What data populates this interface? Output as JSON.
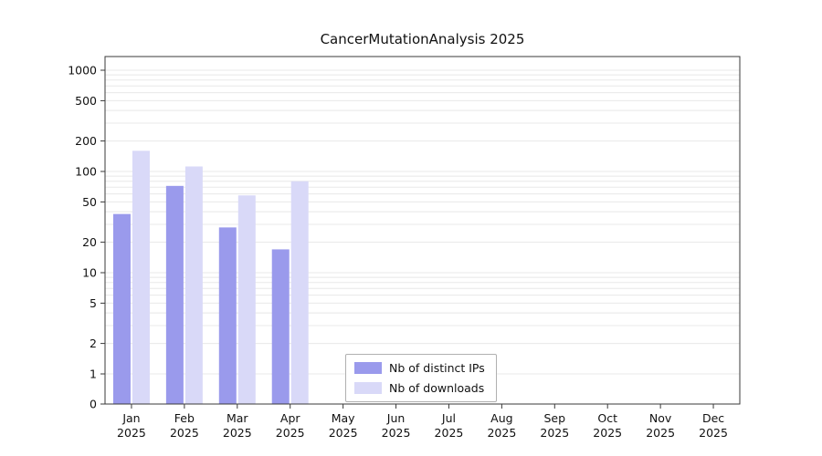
{
  "page": {
    "background": "#ffffff"
  },
  "chart_data": {
    "type": "bar",
    "title": "CancerMutationAnalysis 2025",
    "categories": [
      "Jan 2025",
      "Feb 2025",
      "Mar 2025",
      "Apr 2025",
      "May 2025",
      "Jun 2025",
      "Jul 2025",
      "Aug 2025",
      "Sep 2025",
      "Oct 2025",
      "Nov 2025",
      "Dec 2025"
    ],
    "series": [
      {
        "name": "Nb of distinct IPs",
        "color": "#9a9aec",
        "values": [
          38,
          72,
          28,
          17,
          0,
          0,
          0,
          0,
          0,
          0,
          0,
          0
        ]
      },
      {
        "name": "Nb of downloads",
        "color": "#d9d9f8",
        "values": [
          160,
          112,
          58,
          80,
          0,
          0,
          0,
          0,
          0,
          0,
          0,
          0
        ]
      }
    ],
    "y_ticks": [
      0,
      1,
      2,
      5,
      10,
      20,
      50,
      100,
      200,
      500,
      1000
    ],
    "y_scale": "log",
    "ylim": [
      0,
      1000
    ],
    "xlabel": "",
    "ylabel": "",
    "grid": true,
    "grid_color": "#e8e8e8",
    "axis_color": "#3a3a3a",
    "legend_position": "inside-bottom-center"
  }
}
